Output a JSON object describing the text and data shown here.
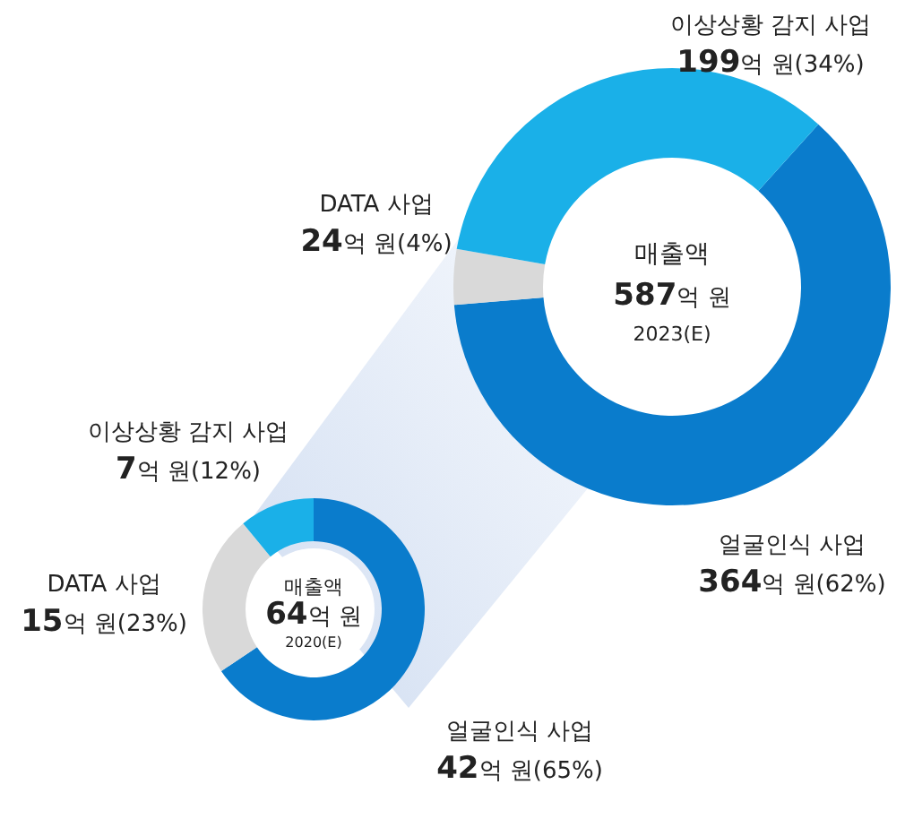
{
  "chart_data": [
    {
      "type": "donut",
      "title": "매출액",
      "subtitle": "587억 원",
      "annotations": [
        "2023(E)"
      ],
      "categories": [
        "얼굴인식 사업",
        "DATA 사업",
        "이상상황 감지 사업"
      ],
      "values": [
        364,
        24,
        199
      ],
      "colors": [
        "#0a7ccc",
        "#d9d9d9",
        "#1ab0e8"
      ],
      "value_labels": [
        "364억 원(62%)",
        "24억 원(4%)",
        "199억 원(34%)"
      ]
    },
    {
      "type": "donut",
      "title": "매출액",
      "subtitle": "64억 원",
      "annotations": [
        "2020(E)"
      ],
      "categories": [
        "얼굴인식 사업",
        "DATA 사업",
        "이상상황 감지 사업"
      ],
      "values": [
        42,
        15,
        7
      ],
      "colors": [
        "#0a7ccc",
        "#d9d9d9",
        "#1ab0e8"
      ],
      "value_labels": [
        "42억 원(65%)",
        "15억 원(23%)",
        "7억 원(12%)"
      ]
    }
  ]
}
